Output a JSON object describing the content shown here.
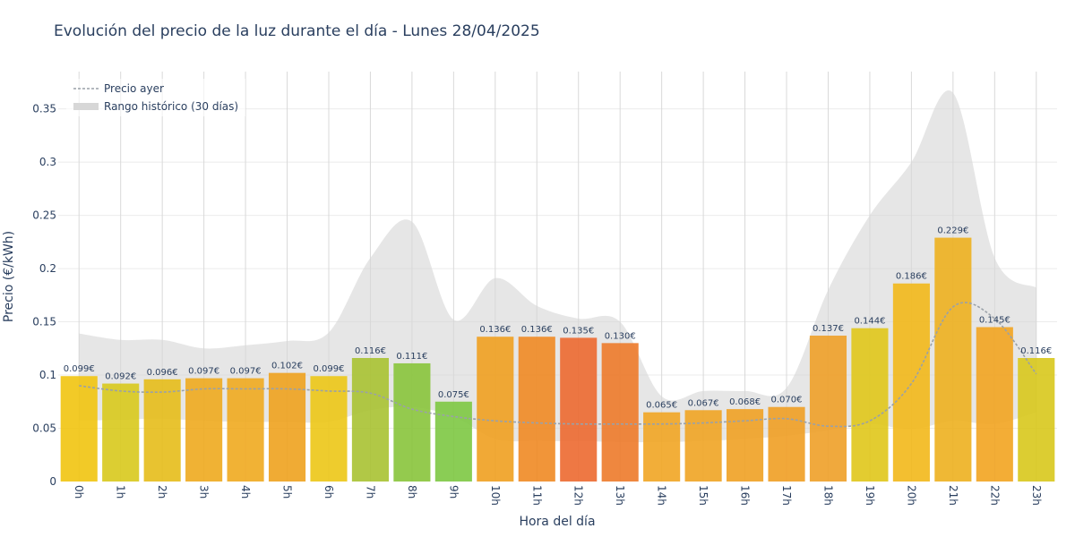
{
  "chart_data": {
    "type": "bar",
    "title": "Evolución del precio de la luz durante el día - Lunes 28/04/2025",
    "xlabel": "Hora del día",
    "ylabel": "Precio (€/kWh)",
    "ylim": [
      0,
      0.385
    ],
    "yticks": [
      0,
      0.05,
      0.1,
      0.15,
      0.2,
      0.25,
      0.3,
      0.35
    ],
    "ytick_labels": [
      "0",
      "0.05",
      "0.1",
      "0.15",
      "0.2",
      "0.25",
      "0.3",
      "0.35"
    ],
    "categories": [
      "0h",
      "1h",
      "2h",
      "3h",
      "4h",
      "5h",
      "6h",
      "7h",
      "8h",
      "9h",
      "10h",
      "11h",
      "12h",
      "13h",
      "14h",
      "15h",
      "16h",
      "17h",
      "18h",
      "19h",
      "20h",
      "21h",
      "22h",
      "23h"
    ],
    "values": [
      0.099,
      0.092,
      0.096,
      0.097,
      0.097,
      0.102,
      0.099,
      0.116,
      0.111,
      0.075,
      0.136,
      0.136,
      0.135,
      0.13,
      0.065,
      0.067,
      0.068,
      0.07,
      0.137,
      0.144,
      0.186,
      0.229,
      0.145,
      0.116
    ],
    "value_labels": [
      "0.099€",
      "0.092€",
      "0.096€",
      "0.097€",
      "0.097€",
      "0.102€",
      "0.099€",
      "0.116€",
      "0.111€",
      "0.075€",
      "0.136€",
      "0.136€",
      "0.135€",
      "0.130€",
      "0.065€",
      "0.067€",
      "0.068€",
      "0.070€",
      "0.137€",
      "0.144€",
      "0.186€",
      "0.229€",
      "0.145€",
      "0.116€"
    ],
    "bar_colors": [
      "#f1c40f",
      "#d8c91c",
      "#e5bd1a",
      "#eeaa1e",
      "#efaa1f",
      "#eea21e",
      "#ecc716",
      "#a8c232",
      "#88c43b",
      "#7dc843",
      "#f0a020",
      "#ef8a24",
      "#ec6930",
      "#ed7a2a",
      "#f1a524",
      "#f0a424",
      "#f0a124",
      "#f09e24",
      "#eea028",
      "#e0c61a",
      "#f2b81a",
      "#edb01f",
      "#f2a420",
      "#d8c81c"
    ],
    "series": [
      {
        "name": "Precio ayer",
        "line_color": "#9aa1a8",
        "values": [
          0.09,
          0.085,
          0.084,
          0.087,
          0.087,
          0.087,
          0.085,
          0.083,
          0.068,
          0.061,
          0.057,
          0.055,
          0.054,
          0.054,
          0.054,
          0.055,
          0.057,
          0.059,
          0.052,
          0.057,
          0.092,
          0.164,
          0.153,
          0.101
        ]
      },
      {
        "name": "Rango histórico (30 días)",
        "fill_color": "#d7d7d7",
        "upper": [
          0.139,
          0.133,
          0.133,
          0.125,
          0.128,
          0.132,
          0.14,
          0.21,
          0.244,
          0.152,
          0.191,
          0.165,
          0.153,
          0.15,
          0.08,
          0.085,
          0.085,
          0.088,
          0.18,
          0.25,
          0.3,
          0.365,
          0.21,
          0.182
        ],
        "lower": [
          0.057,
          0.058,
          0.059,
          0.057,
          0.056,
          0.056,
          0.056,
          0.067,
          0.07,
          0.061,
          0.04,
          0.038,
          0.038,
          0.037,
          0.037,
          0.038,
          0.04,
          0.043,
          0.048,
          0.054,
          0.049,
          0.057,
          0.054,
          0.065
        ]
      }
    ],
    "legend_position": "top-left",
    "grid": true
  }
}
